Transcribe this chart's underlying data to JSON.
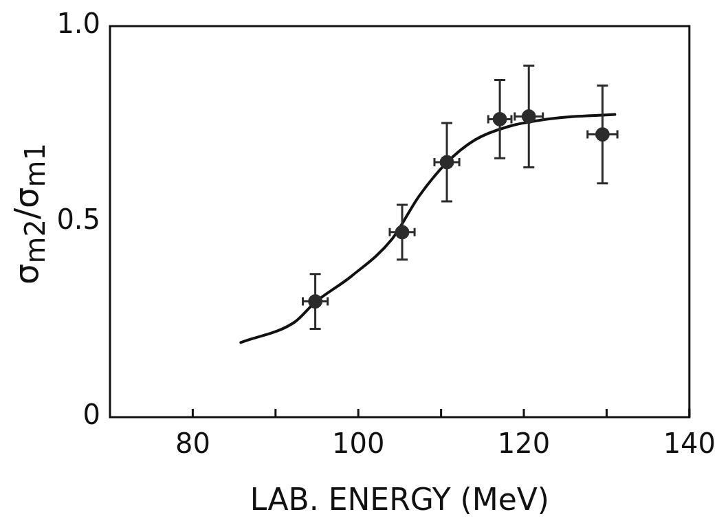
{
  "chart_data": {
    "type": "scatter",
    "xlabel": "LAB. ENERGY (MeV)",
    "ylabel": "σ$_{m2}$/σ$_{m1}$",
    "xlim": [
      70,
      140
    ],
    "xticks": [
      80,
      {
        "value": 90,
        "label": null
      },
      100,
      {
        "value": 110,
        "label": null
      },
      120,
      {
        "value": 130,
        "label": null
      },
      140
    ],
    "ylim": [
      0,
      1
    ],
    "yticks": [
      0,
      0.5,
      {
        "value": 1,
        "label": "1.0"
      }
    ],
    "grid": false,
    "legend": false,
    "marker": "circle",
    "series": [
      {
        "type": "scatter",
        "color": "#2b2b2b",
        "x": [
          94.8,
          105.3,
          110.7,
          117.1,
          120.6,
          129.5
        ],
        "values": [
          0.296,
          0.473,
          0.652,
          0.762,
          0.769,
          0.723
        ],
        "errors": [
          0.07,
          0.07,
          0.1,
          0.1,
          0.13,
          0.125
        ],
        "xerrors": [
          1.5,
          1.5,
          1.5,
          1.4,
          1.7,
          1.8
        ]
      },
      {
        "type": "line",
        "color": "#111111",
        "marker": "none",
        "line_style": "solid",
        "x": [
          85.8,
          92.3,
          94.8,
          99.2,
          104.1,
          107.3,
          110.6,
          114.1,
          118.1,
          123.6,
          129.0,
          131.0
        ],
        "values": [
          0.191,
          0.243,
          0.294,
          0.361,
          0.456,
          0.564,
          0.649,
          0.709,
          0.743,
          0.764,
          0.772,
          0.774
        ]
      }
    ]
  }
}
